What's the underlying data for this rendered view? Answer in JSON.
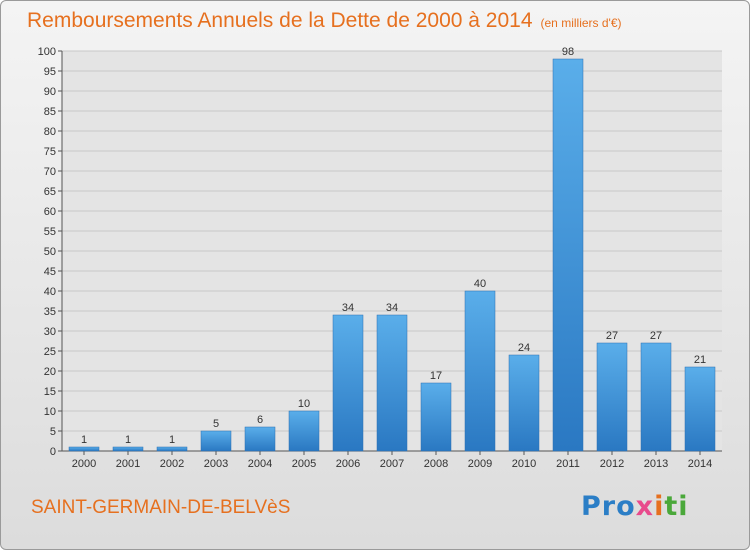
{
  "header": {
    "title": "Remboursements Annuels de la Dette de 2000 à 2014",
    "unit": "(en milliers d'€)"
  },
  "footer": {
    "commune": "SAINT-GERMAIN-DE-BELVèS",
    "logo": "Proxiti"
  },
  "chart_data": {
    "type": "bar",
    "title": "Remboursements Annuels de la Dette de 2000 à 2014",
    "subtitle": "(en milliers d'€)",
    "xlabel": "",
    "ylabel": "",
    "categories": [
      "2000",
      "2001",
      "2002",
      "2003",
      "2004",
      "2005",
      "2006",
      "2007",
      "2008",
      "2009",
      "2010",
      "2011",
      "2012",
      "2013",
      "2014"
    ],
    "values": [
      1,
      1,
      1,
      5,
      6,
      10,
      34,
      34,
      17,
      40,
      24,
      98,
      27,
      27,
      21
    ],
    "ylim": [
      0,
      100
    ],
    "yticks": [
      0,
      5,
      10,
      15,
      20,
      25,
      30,
      35,
      40,
      45,
      50,
      55,
      60,
      65,
      70,
      75,
      80,
      85,
      90,
      95,
      100
    ],
    "grid": true,
    "data_labels": true,
    "bar_color": "#3a8fd8",
    "text_color": "#e6701f"
  }
}
